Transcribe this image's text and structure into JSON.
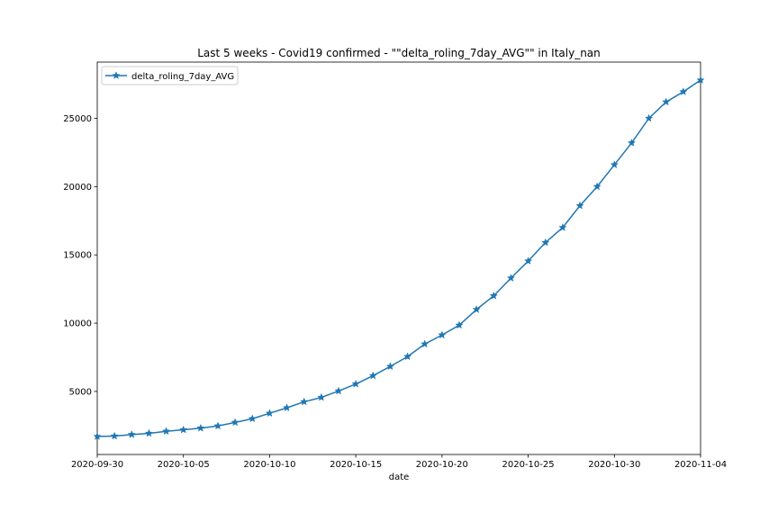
{
  "chart_data": {
    "type": "line",
    "title": "Last 5 weeks - Covid19 confirmed - \"\"delta_roling_7day_AVG\"\"  in Italy_nan",
    "xlabel": "date",
    "ylabel": "",
    "x": [
      "2020-09-30",
      "2020-10-01",
      "2020-10-02",
      "2020-10-03",
      "2020-10-04",
      "2020-10-05",
      "2020-10-06",
      "2020-10-07",
      "2020-10-08",
      "2020-10-09",
      "2020-10-10",
      "2020-10-11",
      "2020-10-12",
      "2020-10-13",
      "2020-10-14",
      "2020-10-15",
      "2020-10-16",
      "2020-10-17",
      "2020-10-18",
      "2020-10-19",
      "2020-10-20",
      "2020-10-21",
      "2020-10-22",
      "2020-10-23",
      "2020-10-24",
      "2020-10-25",
      "2020-10-26",
      "2020-10-27",
      "2020-10-28",
      "2020-10-29",
      "2020-10-30",
      "2020-10-31",
      "2020-11-01",
      "2020-11-02",
      "2020-11-03",
      "2020-11-04"
    ],
    "series": [
      {
        "name": "delta_roling_7day_AVG",
        "values": [
          1700,
          1730,
          1840,
          1930,
          2080,
          2190,
          2310,
          2470,
          2730,
          3000,
          3400,
          3800,
          4240,
          4560,
          5030,
          5540,
          6150,
          6830,
          7550,
          8470,
          9130,
          9850,
          11000,
          12000,
          13300,
          14550,
          15900,
          17000,
          18600,
          20000,
          21600,
          23200,
          25000,
          26200,
          26950,
          27800
        ],
        "color": "#1f77b4",
        "marker": "star"
      }
    ],
    "xticks": [
      "2020-09-30",
      "2020-10-05",
      "2020-10-10",
      "2020-10-15",
      "2020-10-20",
      "2020-10-25",
      "2020-10-30",
      "2020-11-04"
    ],
    "yticks": [
      5000,
      10000,
      15000,
      20000,
      25000
    ],
    "xlim": [
      "2020-09-30",
      "2020-11-04"
    ],
    "ylim": [
      380,
      29120
    ],
    "grid": false,
    "legend": "top-left"
  }
}
